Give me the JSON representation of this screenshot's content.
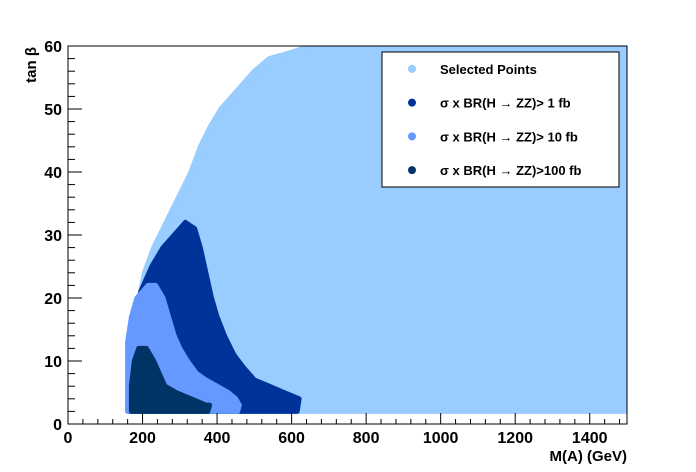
{
  "chart_data": {
    "type": "scatter",
    "xlabel": "M(A) (GeV)",
    "ylabel": "tan β",
    "xlim": [
      0,
      1500
    ],
    "ylim": [
      0,
      60
    ],
    "x_ticks": [
      0,
      200,
      400,
      600,
      800,
      1000,
      1200,
      1400
    ],
    "y_ticks": [
      0,
      10,
      20,
      30,
      40,
      50,
      60
    ],
    "grid": false,
    "legend_position": "top-right",
    "series": [
      {
        "name": "Selected Points",
        "color": "#99ccff",
        "region": [
          [
            160,
            3
          ],
          [
            170,
            10
          ],
          [
            185,
            18
          ],
          [
            205,
            24
          ],
          [
            230,
            28
          ],
          [
            255,
            31
          ],
          [
            280,
            34
          ],
          [
            305,
            37
          ],
          [
            330,
            40
          ],
          [
            355,
            44
          ],
          [
            380,
            47
          ],
          [
            410,
            50
          ],
          [
            440,
            52
          ],
          [
            470,
            54
          ],
          [
            500,
            56
          ],
          [
            540,
            58
          ],
          [
            600,
            59
          ],
          [
            650,
            60
          ],
          [
            1500,
            60
          ],
          [
            1500,
            2
          ],
          [
            160,
            2
          ]
        ]
      },
      {
        "name": "σ x BR(H → ZZ)>  1 fb",
        "color": "#003399",
        "region": [
          [
            165,
            8
          ],
          [
            175,
            16
          ],
          [
            195,
            21
          ],
          [
            225,
            25
          ],
          [
            255,
            28
          ],
          [
            285,
            30
          ],
          [
            315,
            32
          ],
          [
            340,
            31
          ],
          [
            355,
            28
          ],
          [
            370,
            24
          ],
          [
            385,
            20
          ],
          [
            400,
            17
          ],
          [
            420,
            14
          ],
          [
            445,
            11
          ],
          [
            470,
            9
          ],
          [
            500,
            7
          ],
          [
            540,
            6
          ],
          [
            580,
            5
          ],
          [
            620,
            4
          ],
          [
            615,
            2
          ],
          [
            165,
            2
          ]
        ]
      },
      {
        "name": "σ x BR(H → ZZ)> 10 fb",
        "color": "#6699ff",
        "region": [
          [
            160,
            13
          ],
          [
            170,
            17
          ],
          [
            185,
            20
          ],
          [
            200,
            21
          ],
          [
            215,
            22
          ],
          [
            235,
            22
          ],
          [
            255,
            20
          ],
          [
            270,
            17
          ],
          [
            285,
            14
          ],
          [
            300,
            12
          ],
          [
            320,
            10
          ],
          [
            345,
            8
          ],
          [
            370,
            7
          ],
          [
            400,
            6
          ],
          [
            430,
            5
          ],
          [
            450,
            4
          ],
          [
            460,
            3
          ],
          [
            455,
            2
          ],
          [
            160,
            2
          ]
        ]
      },
      {
        "name": "σ x BR(H → ZZ)>100 fb",
        "color": "#003366",
        "region": [
          [
            170,
            6
          ],
          [
            178,
            10
          ],
          [
            190,
            12
          ],
          [
            210,
            12
          ],
          [
            230,
            10
          ],
          [
            245,
            8
          ],
          [
            260,
            6
          ],
          [
            290,
            5
          ],
          [
            330,
            4
          ],
          [
            370,
            3
          ],
          [
            380,
            3
          ],
          [
            375,
            2
          ],
          [
            170,
            2
          ]
        ]
      }
    ]
  }
}
